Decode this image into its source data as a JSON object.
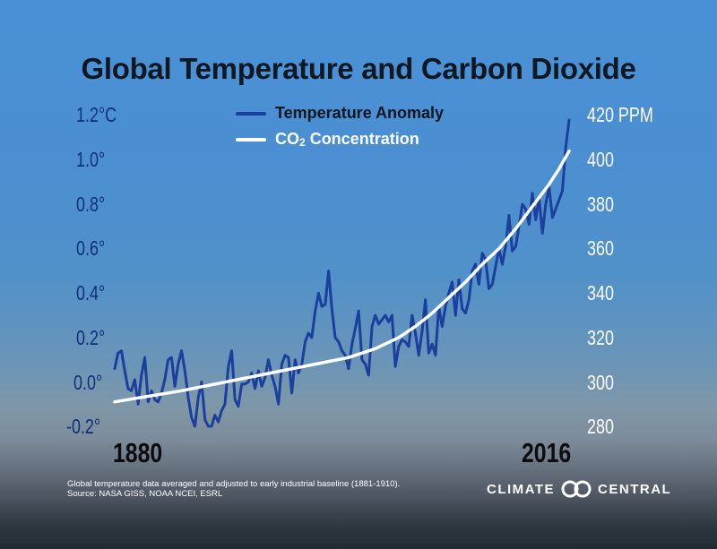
{
  "title": "Global Temperature and Carbon Dioxide",
  "legend": {
    "temperature_label": "Temperature Anomaly",
    "co2_prefix": "CO",
    "co2_sub": "2",
    "co2_suffix": " Concentration"
  },
  "colors": {
    "temperature": "#1b3f9c",
    "co2": "#ffffff"
  },
  "footnote": {
    "line1": "Global temperature data averaged and adjusted to early industrial baseline (1881-1910).",
    "line2": "Source: NASA GISS, NOAA NCEI, ESRL"
  },
  "brand": {
    "left": "CLIMATE",
    "right": "CENTRAL"
  },
  "chart_data": {
    "type": "line",
    "title": "Global Temperature and Carbon Dioxide",
    "x_start_label": "1880",
    "x_end_label": "2016",
    "xlim": [
      1880,
      2016
    ],
    "left_axis": {
      "unit": "°C",
      "ylim": [
        -0.2,
        1.2
      ],
      "tick_labels": [
        "1.2°C",
        "1.0°",
        "0.8°",
        "0.6°",
        "0.4°",
        "0.2°",
        "0.0°",
        "-0.2°"
      ]
    },
    "right_axis": {
      "unit": "PPM",
      "ylim": [
        280,
        420
      ],
      "tick_labels": [
        "420 PPM",
        "400",
        "380",
        "360",
        "340",
        "320",
        "300",
        "280"
      ]
    },
    "series": [
      {
        "name": "Temperature Anomaly",
        "axis": "left",
        "x": [
          1880,
          1881,
          1882,
          1883,
          1884,
          1885,
          1886,
          1887,
          1888,
          1889,
          1890,
          1891,
          1892,
          1893,
          1894,
          1895,
          1896,
          1897,
          1898,
          1899,
          1900,
          1901,
          1902,
          1903,
          1904,
          1905,
          1906,
          1907,
          1908,
          1909,
          1910,
          1911,
          1912,
          1913,
          1914,
          1915,
          1916,
          1917,
          1918,
          1919,
          1920,
          1921,
          1922,
          1923,
          1924,
          1925,
          1926,
          1927,
          1928,
          1929,
          1930,
          1931,
          1932,
          1933,
          1934,
          1935,
          1936,
          1937,
          1938,
          1939,
          1940,
          1941,
          1942,
          1943,
          1944,
          1945,
          1946,
          1947,
          1948,
          1949,
          1950,
          1951,
          1952,
          1953,
          1954,
          1955,
          1956,
          1957,
          1958,
          1959,
          1960,
          1961,
          1962,
          1963,
          1964,
          1965,
          1966,
          1967,
          1968,
          1969,
          1970,
          1971,
          1972,
          1973,
          1974,
          1975,
          1976,
          1977,
          1978,
          1979,
          1980,
          1981,
          1982,
          1983,
          1984,
          1985,
          1986,
          1987,
          1988,
          1989,
          1990,
          1991,
          1992,
          1993,
          1994,
          1995,
          1996,
          1997,
          1998,
          1999,
          2000,
          2001,
          2002,
          2003,
          2004,
          2005,
          2006,
          2007,
          2008,
          2009,
          2010,
          2011,
          2012,
          2013,
          2014,
          2015,
          2016
        ],
        "values": [
          0.06,
          0.13,
          0.14,
          0.05,
          -0.03,
          -0.04,
          0.01,
          -0.1,
          0.03,
          0.11,
          -0.09,
          -0.04,
          -0.08,
          -0.09,
          -0.05,
          0.01,
          0.1,
          0.11,
          -0.02,
          0.08,
          0.14,
          0.05,
          -0.07,
          -0.16,
          -0.2,
          -0.07,
          0.0,
          -0.17,
          -0.2,
          -0.2,
          -0.15,
          -0.18,
          -0.13,
          -0.1,
          0.07,
          0.14,
          -0.08,
          -0.11,
          -0.01,
          -0.01,
          0.0,
          0.04,
          -0.03,
          0.05,
          -0.02,
          0.02,
          0.1,
          0.03,
          -0.02,
          -0.1,
          0.08,
          0.12,
          0.11,
          -0.05,
          0.1,
          0.04,
          0.08,
          0.18,
          0.22,
          0.2,
          0.32,
          0.4,
          0.34,
          0.35,
          0.5,
          0.33,
          0.2,
          0.18,
          0.14,
          0.12,
          0.06,
          0.17,
          0.24,
          0.32,
          0.1,
          0.08,
          0.03,
          0.25,
          0.3,
          0.26,
          0.28,
          0.3,
          0.27,
          0.3,
          0.07,
          0.16,
          0.19,
          0.18,
          0.16,
          0.3,
          0.22,
          0.12,
          0.23,
          0.37,
          0.13,
          0.17,
          0.12,
          0.34,
          0.25,
          0.34,
          0.4,
          0.45,
          0.3,
          0.46,
          0.33,
          0.31,
          0.37,
          0.5,
          0.53,
          0.44,
          0.58,
          0.55,
          0.42,
          0.44,
          0.52,
          0.6,
          0.53,
          0.61,
          0.75,
          0.59,
          0.61,
          0.7,
          0.8,
          0.78,
          0.71,
          0.85,
          0.73,
          0.83,
          0.67,
          0.8,
          0.88,
          0.74,
          0.78,
          0.82,
          0.86,
          1.06,
          1.18
        ]
      },
      {
        "name": "CO2 Concentration",
        "axis": "right",
        "x": [
          1880,
          1890,
          1900,
          1910,
          1920,
          1930,
          1940,
          1950,
          1958,
          1965,
          1970,
          1975,
          1980,
          1985,
          1990,
          1995,
          2000,
          2005,
          2010,
          2013,
          2016
        ],
        "values": [
          291,
          293.5,
          296,
          299,
          302,
          305,
          308,
          311,
          315,
          320,
          325,
          331,
          338,
          345,
          353,
          360,
          369,
          379,
          389,
          396,
          404
        ]
      }
    ]
  }
}
